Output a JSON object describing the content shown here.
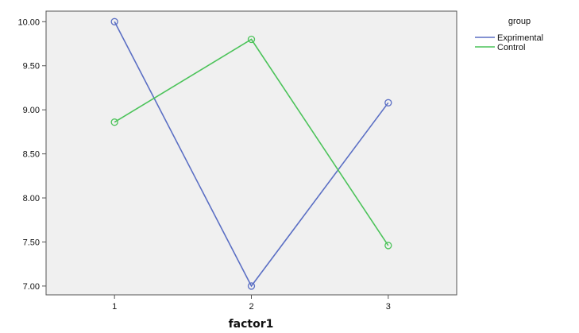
{
  "chart_data": {
    "type": "line",
    "xlabel": "factor1",
    "ylabel": "",
    "categories": [
      "1",
      "2",
      "3"
    ],
    "x": [
      1,
      2,
      3
    ],
    "xlim": [
      0.5,
      3.5
    ],
    "ylim": [
      6.9,
      10.12
    ],
    "yticks": [
      7.0,
      7.5,
      8.0,
      8.5,
      9.0,
      9.5,
      10.0
    ],
    "ytick_labels": [
      "7.00",
      "7.50",
      "8.00",
      "8.50",
      "9.00",
      "9.50",
      "10.00"
    ],
    "grid": false,
    "markers": "open-circle",
    "plot_background": "#f0f0f0",
    "legend": {
      "title": "group",
      "placement": "top-right-outside"
    },
    "series": [
      {
        "name": "Exprimental",
        "values": [
          10.0,
          7.0,
          9.08
        ],
        "color": "#5b6fc4"
      },
      {
        "name": "Control",
        "values": [
          8.86,
          9.8,
          7.46
        ],
        "color": "#4cc35a"
      }
    ]
  }
}
